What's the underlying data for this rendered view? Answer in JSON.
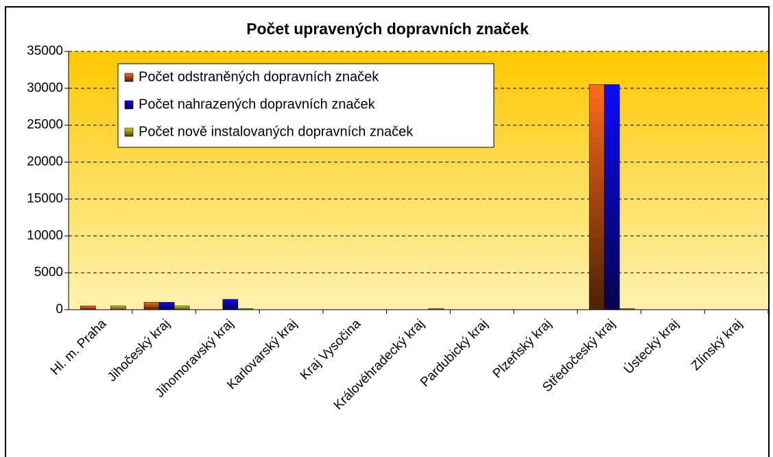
{
  "chart_data": {
    "type": "bar",
    "title": "Počet upravených dopravních značek",
    "categories": [
      "Hl. m. Praha",
      "Jihočeský kraj",
      "Jihomoravský kraj",
      "Karlovarský kraj",
      "Kraj Vysočina",
      "Královéhradecký kraj",
      "Pardubický kraj",
      "Plzeňský kraj",
      "Středočeský kraj",
      "Ústecký kraj",
      "Zlínský kraj"
    ],
    "series": [
      {
        "name": "Počet odstraněných dopravních značek",
        "color": "#ff6a1a",
        "values": [
          500,
          1000,
          0,
          0,
          0,
          0,
          0,
          0,
          30500,
          0,
          0
        ]
      },
      {
        "name": "Počet nahrazených dopravních značek",
        "color": "#0a0aff",
        "values": [
          0,
          1000,
          1400,
          0,
          0,
          0,
          0,
          0,
          30500,
          0,
          0
        ]
      },
      {
        "name": "Počet nově instalovaných dopravních značek",
        "color": "#d4d400",
        "values": [
          500,
          500,
          150,
          0,
          0,
          150,
          0,
          0,
          150,
          0,
          0
        ]
      }
    ],
    "ylim": [
      0,
      35000
    ],
    "yticks": [
      0,
      5000,
      10000,
      15000,
      20000,
      25000,
      30000,
      35000
    ],
    "grid": true
  }
}
